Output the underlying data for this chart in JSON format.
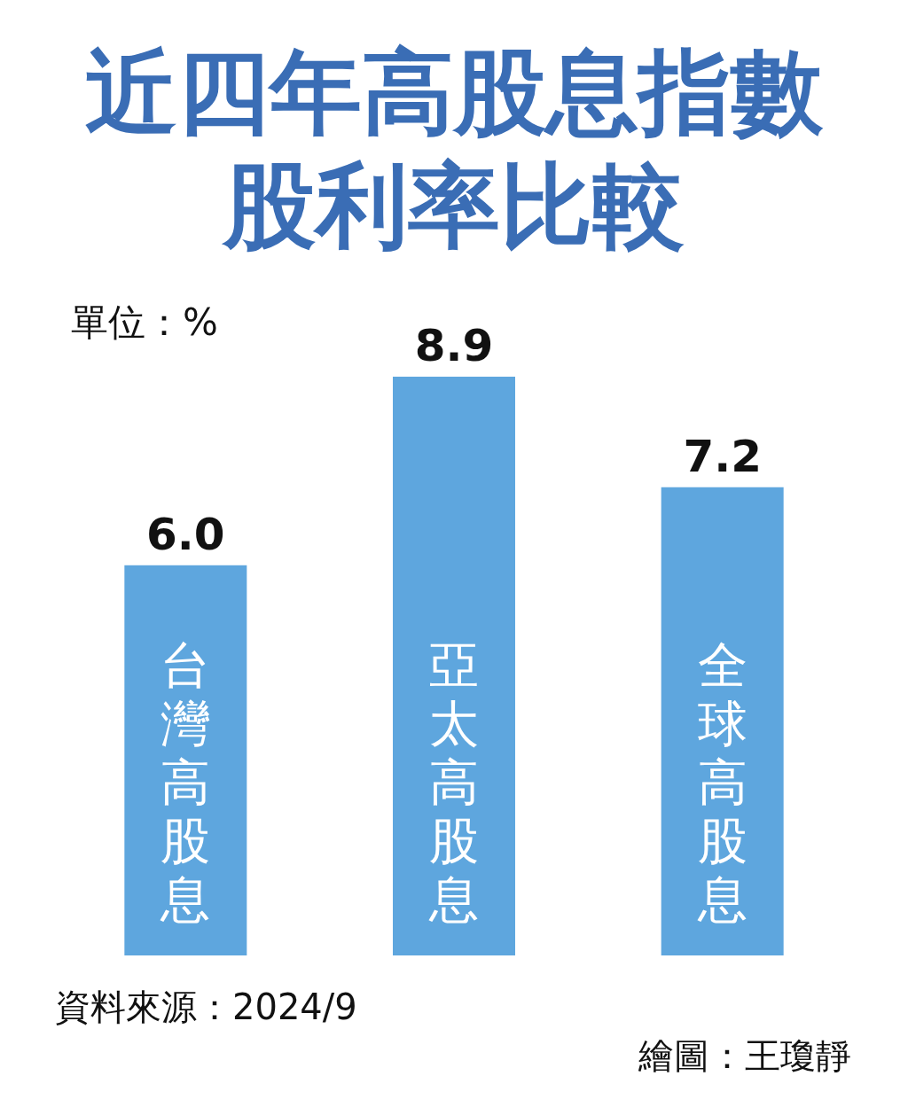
{
  "chart_data": {
    "type": "bar",
    "title": "近四年高股息指數股利率比較",
    "ylabel": "單位：%",
    "categories": [
      "台灣高股息",
      "亞太高股息",
      "全球高股息"
    ],
    "values": [
      6.0,
      8.9,
      7.2
    ],
    "color": "#5ea6de",
    "value_labels": [
      "6.0",
      "8.9",
      "7.2"
    ],
    "annotations": [
      "資料來源：2024/9",
      "繪圖：王瓊靜"
    ]
  }
}
